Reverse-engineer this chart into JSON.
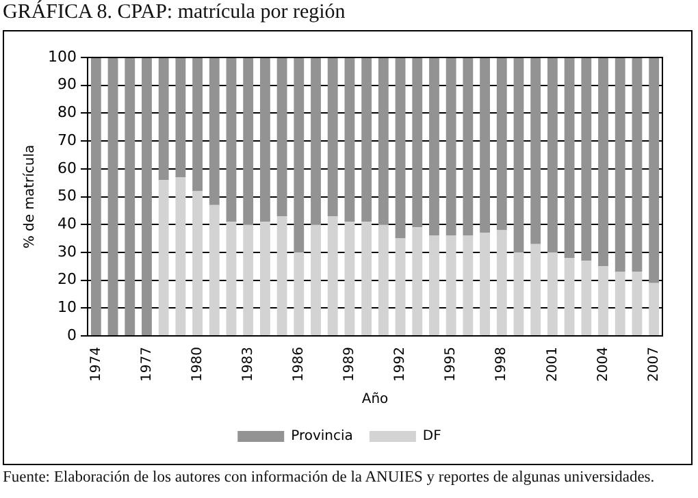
{
  "chart_data": {
    "type": "bar",
    "title": "GRÁFICA 8. CPAP: matrícula por región",
    "xlabel": "Año",
    "ylabel": "% de matrícula",
    "categories": [
      "1974",
      null,
      null,
      "1977",
      null,
      null,
      "1980",
      null,
      null,
      "1983",
      null,
      null,
      "1986",
      null,
      null,
      "1989",
      null,
      null,
      "1992",
      null,
      null,
      "1995",
      null,
      null,
      "1998",
      null,
      null,
      "2001",
      null,
      null,
      "2004",
      null,
      null,
      "2007"
    ],
    "stacked": true,
    "series": [
      {
        "name": "DF",
        "color": "#d3d3d3",
        "values": [
          0,
          0,
          0,
          0,
          56,
          57,
          52,
          47,
          41,
          40,
          41,
          43,
          30,
          40,
          43,
          41,
          41,
          40,
          35,
          39,
          36,
          36,
          36,
          37,
          38,
          30,
          33,
          30,
          28,
          27,
          25,
          23,
          23,
          19
        ]
      },
      {
        "name": "Provincia",
        "color": "#939393",
        "values": [
          100,
          100,
          100,
          100,
          44,
          43,
          48,
          53,
          59,
          60,
          59,
          57,
          70,
          60,
          57,
          59,
          59,
          60,
          65,
          61,
          64,
          64,
          64,
          63,
          62,
          70,
          67,
          70,
          72,
          73,
          75,
          77,
          77,
          81
        ]
      }
    ],
    "ylim": [
      0,
      100
    ],
    "yticks": [
      0,
      10,
      20,
      30,
      40,
      50,
      60,
      70,
      80,
      90,
      100
    ],
    "grid": "y",
    "legend": "bottom",
    "annotations": [
      "Fuente: Elaboración de los autores con información de la ANUIES y reportes de algunas universidades."
    ]
  }
}
